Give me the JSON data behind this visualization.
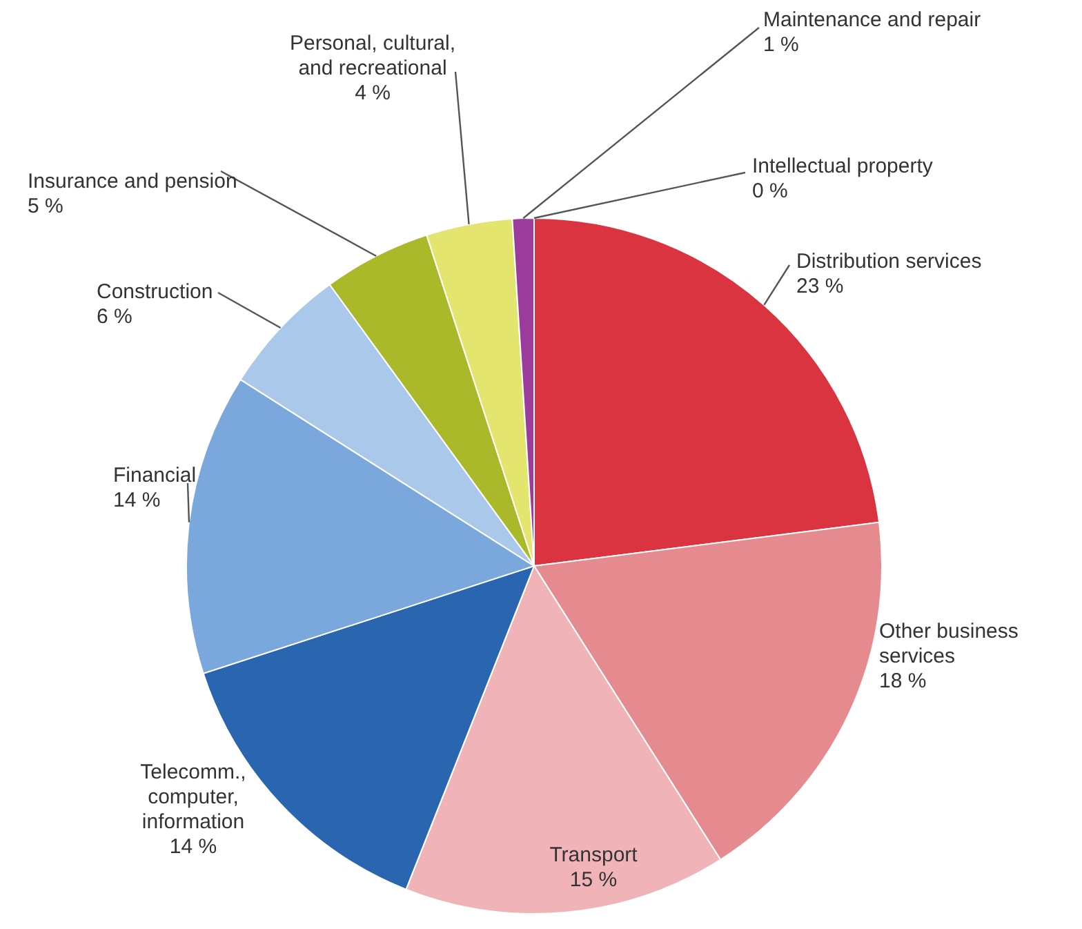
{
  "chart_data": {
    "type": "pie",
    "categories": [
      "Distribution services",
      "Other business services",
      "Transport",
      "Telecomm., computer, information",
      "Financial",
      "Construction",
      "Insurance and pension",
      "Personal, cultural, and recreational",
      "Maintenance and repair",
      "Intellectual property"
    ],
    "values": [
      23,
      18,
      15,
      14,
      14,
      6,
      5,
      4,
      1,
      0
    ],
    "value_labels": [
      "23 %",
      "18 %",
      "15 %",
      "14 %",
      "14 %",
      "6 %",
      "5 %",
      "4 %",
      "1 %",
      "0 %"
    ],
    "colors": [
      "#d9343f",
      "#e58a8f",
      "#f0b4b8",
      "#2a66b0",
      "#7aa7dc",
      "#a9c8ea",
      "#a9b92a",
      "#e3e56e",
      "#9b3b9b",
      "#e8709a"
    ]
  }
}
